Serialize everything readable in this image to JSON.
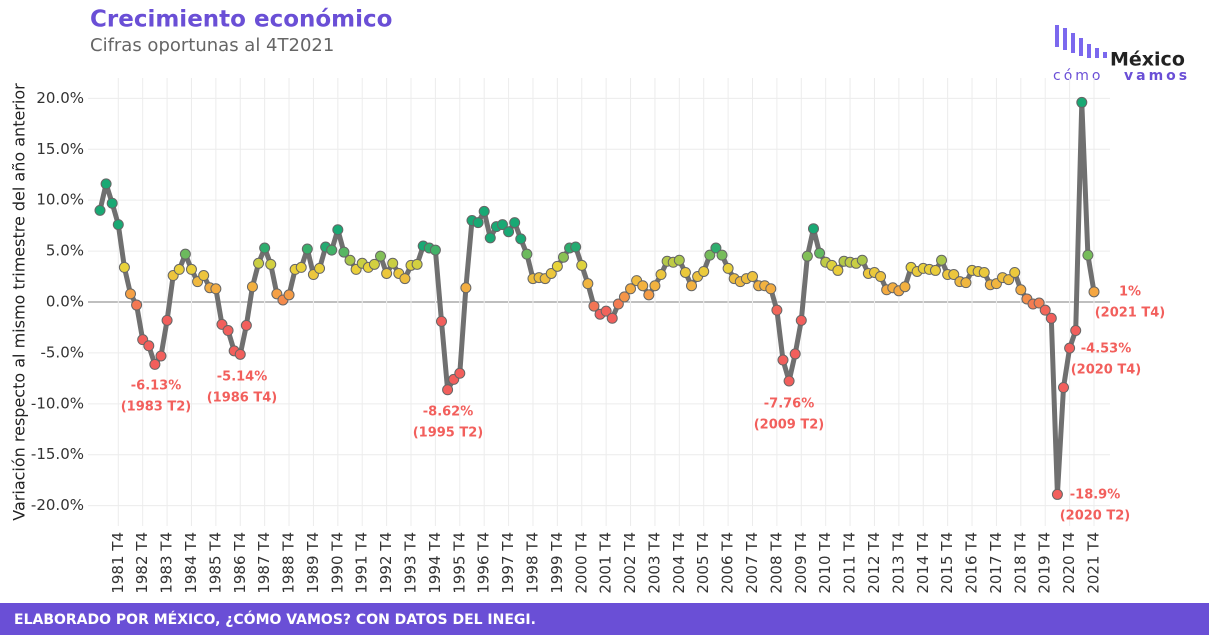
{
  "chart_data": {
    "type": "line",
    "title": "Crecimiento económico",
    "subtitle": "Cifras oportunas al 4T2021",
    "y_label": "Variación respecto al mismo trimestre del año anterior",
    "source": "ELABORADO POR MÉXICO, ¿CÓMO VAMOS? CON DATOS DEL INEGI.",
    "logo": {
      "name": "México",
      "tagline_a": "cómo",
      "tagline_b": "vamos"
    },
    "categories": [
      null,
      null,
      null,
      "1981 T4",
      null,
      null,
      null,
      "1982 T4",
      null,
      null,
      null,
      "1983 T4",
      null,
      null,
      null,
      "1984 T4",
      null,
      null,
      null,
      "1985 T4",
      null,
      null,
      null,
      "1986 T4",
      null,
      null,
      null,
      "1987 T4",
      null,
      null,
      null,
      "1988 T4",
      null,
      null,
      null,
      "1989 T4",
      null,
      null,
      null,
      "1990 T4",
      null,
      null,
      null,
      "1991 T4",
      null,
      null,
      null,
      "1992 T4",
      null,
      null,
      null,
      "1993 T4",
      null,
      null,
      null,
      "1994 T4",
      null,
      null,
      null,
      "1995 T4",
      null,
      null,
      null,
      "1996 T4",
      null,
      null,
      null,
      "1997 T4",
      null,
      null,
      null,
      "1998 T4",
      null,
      null,
      null,
      "1999 T4",
      null,
      null,
      null,
      "2000 T4",
      null,
      null,
      null,
      "2001 T4",
      null,
      null,
      null,
      "2002 T4",
      null,
      null,
      null,
      "2003 T4",
      null,
      null,
      null,
      "2004 T4",
      null,
      null,
      null,
      "2005 T4",
      null,
      null,
      null,
      "2006 T4",
      null,
      null,
      null,
      "2007 T4",
      null,
      null,
      null,
      "2008 T4",
      null,
      null,
      null,
      "2009 T4",
      null,
      null,
      null,
      "2010 T4",
      null,
      null,
      null,
      "2011 T4",
      null,
      null,
      null,
      "2012 T4",
      null,
      null,
      null,
      "2013 T4",
      null,
      null,
      null,
      "2014 T4",
      null,
      null,
      null,
      "2015 T4",
      null,
      null,
      null,
      "2016 T4",
      null,
      null,
      null,
      "2017 T4",
      null,
      null,
      null,
      "2018 T4",
      null,
      null,
      null,
      "2019 T4",
      null,
      null,
      null,
      "2020 T4",
      null,
      null,
      null,
      "2021 T4"
    ],
    "values": [
      9.0,
      11.6,
      9.7,
      7.6,
      3.4,
      0.8,
      -0.3,
      -3.7,
      -4.3,
      -6.13,
      -5.3,
      -1.8,
      2.6,
      3.2,
      4.7,
      3.2,
      2.0,
      2.6,
      1.4,
      1.3,
      -2.2,
      -2.8,
      -4.8,
      -5.14,
      -2.3,
      1.5,
      3.8,
      5.3,
      3.7,
      0.8,
      0.2,
      0.7,
      3.2,
      3.4,
      5.2,
      2.7,
      3.3,
      5.4,
      5.1,
      7.1,
      4.9,
      4.1,
      3.2,
      3.8,
      3.4,
      3.7,
      4.5,
      2.8,
      3.8,
      2.8,
      2.3,
      3.6,
      3.7,
      5.5,
      5.3,
      5.1,
      -1.9,
      -8.62,
      -7.6,
      -7.0,
      1.4,
      8.0,
      7.8,
      8.9,
      6.3,
      7.4,
      7.6,
      6.9,
      7.8,
      6.2,
      4.7,
      2.3,
      2.4,
      2.3,
      2.8,
      3.5,
      4.4,
      5.3,
      5.4,
      3.6,
      1.8,
      -0.4,
      -1.2,
      -0.9,
      -1.6,
      -0.2,
      0.5,
      1.3,
      2.1,
      1.6,
      0.7,
      1.6,
      2.7,
      4.0,
      3.9,
      4.1,
      2.9,
      1.6,
      2.5,
      3.0,
      4.6,
      5.3,
      4.6,
      3.3,
      2.3,
      2.0,
      2.3,
      2.5,
      1.6,
      1.6,
      1.3,
      -0.8,
      -5.7,
      -7.76,
      -5.1,
      -1.8,
      4.5,
      7.2,
      4.8,
      3.9,
      3.6,
      3.1,
      4.0,
      3.9,
      3.8,
      4.1,
      2.8,
      2.9,
      2.5,
      1.2,
      1.4,
      1.1,
      1.5,
      3.4,
      3.0,
      3.3,
      3.2,
      3.1,
      4.1,
      2.7,
      2.7,
      2.0,
      1.9,
      3.1,
      3.0,
      2.9,
      1.7,
      1.8,
      2.4,
      2.2,
      2.9,
      1.2,
      0.3,
      -0.2,
      -0.1,
      -0.8,
      -1.6,
      -18.9,
      -8.4,
      -4.53,
      -2.8,
      19.6,
      4.6,
      1.0
    ],
    "color": "#707070",
    "color_scale": [
      {
        "value": -1,
        "color": "#f25f5c"
      },
      {
        "value": 1,
        "color": "#f5a742"
      },
      {
        "value": 3.5,
        "color": "#e8d43a"
      },
      {
        "value": 5.5,
        "color": "#19a974"
      }
    ],
    "ylim": [
      -22,
      22
    ],
    "yticks": [
      {
        "value": -20,
        "label": "-20.0%"
      },
      {
        "value": -15,
        "label": "-15.0%"
      },
      {
        "value": -10,
        "label": "-10.0%"
      },
      {
        "value": -5,
        "label": "-5.0%"
      },
      {
        "value": 0,
        "label": "0.0%"
      },
      {
        "value": 5,
        "label": "5.0%"
      },
      {
        "value": 10,
        "label": "10.0%"
      },
      {
        "value": 15,
        "label": "15.0%"
      },
      {
        "value": 20,
        "label": "20.0%"
      }
    ],
    "grid": true,
    "annotations": [
      {
        "text": "-6.13%",
        "period": "(1983 T2)"
      },
      {
        "text": "-5.14%",
        "period": "(1986 T4)"
      },
      {
        "text": "-8.62%",
        "period": "(1995 T2)"
      },
      {
        "text": "-7.76%",
        "period": "(2009 T2)"
      },
      {
        "text": "-18.9%",
        "period": "(2020 T2)"
      },
      {
        "text": "-4.53%",
        "period": "(2020 T4)"
      },
      {
        "text": "1%",
        "period": "(2021 T4)"
      }
    ]
  }
}
